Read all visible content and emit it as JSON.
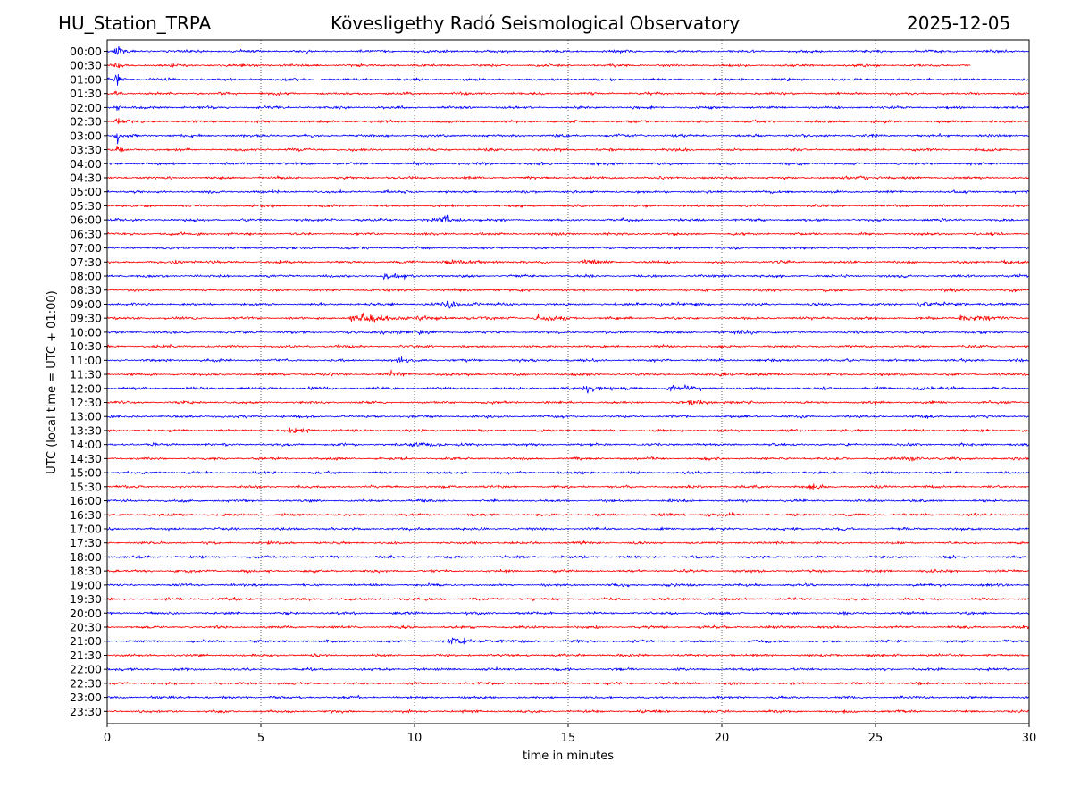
{
  "header": {
    "station": "HU_Station_TRPA",
    "observatory": "Kövesligethy Radó Seismological Observatory",
    "date": "2025-12-05"
  },
  "chart_data": {
    "type": "line",
    "title": "Kövesligethy Radó Seismological Observatory",
    "xlabel": "time in minutes",
    "ylabel": "UTC (local time = UTC + 01:00)",
    "xlim": [
      0,
      30
    ],
    "x_ticks": [
      0,
      5,
      10,
      15,
      20,
      25,
      30
    ],
    "grid": "vertical dotted lines at x ticks",
    "trace_colors": [
      "#0000ff",
      "#ff0000"
    ],
    "rows": [
      "00:00",
      "00:30",
      "01:00",
      "01:30",
      "02:00",
      "02:30",
      "03:00",
      "03:30",
      "04:00",
      "04:30",
      "05:00",
      "05:30",
      "06:00",
      "06:30",
      "07:00",
      "07:30",
      "08:00",
      "08:30",
      "09:00",
      "09:30",
      "10:00",
      "10:30",
      "11:00",
      "11:30",
      "12:00",
      "12:30",
      "13:00",
      "13:30",
      "14:00",
      "14:30",
      "15:00",
      "15:30",
      "16:00",
      "16:30",
      "17:00",
      "17:30",
      "18:00",
      "18:30",
      "19:00",
      "19:30",
      "20:00",
      "20:30",
      "21:00",
      "21:30",
      "22:00",
      "22:30",
      "23:00",
      "23:30"
    ],
    "events": [
      {
        "row": "00:00",
        "minute": 0.35,
        "amplitude": 6.0,
        "duration": 0.25
      },
      {
        "row": "00:30",
        "minute": 0.35,
        "amplitude": 5.0,
        "duration": 0.25
      },
      {
        "row": "01:00",
        "minute": 0.35,
        "amplitude": 6.0,
        "duration": 0.3
      },
      {
        "row": "01:30",
        "minute": 0.35,
        "amplitude": 4.0,
        "duration": 0.25
      },
      {
        "row": "02:00",
        "minute": 0.35,
        "amplitude": 4.0,
        "duration": 0.25
      },
      {
        "row": "02:30",
        "minute": 0.35,
        "amplitude": 3.0,
        "duration": 0.25
      },
      {
        "row": "03:00",
        "minute": 0.35,
        "amplitude": 5.0,
        "duration": 0.25
      },
      {
        "row": "03:30",
        "minute": 0.35,
        "amplitude": 3.0,
        "duration": 0.25
      },
      {
        "row": "04:30",
        "minute": 24.5,
        "amplitude": 1.6,
        "duration": 1.2
      },
      {
        "row": "06:00",
        "minute": 10.9,
        "amplitude": 2.5,
        "duration": 1.5
      },
      {
        "row": "06:30",
        "minute": 3.0,
        "amplitude": 1.4,
        "duration": 1.0
      },
      {
        "row": "07:30",
        "minute": 2.2,
        "amplitude": 1.4,
        "duration": 1.5
      },
      {
        "row": "07:30",
        "minute": 11.0,
        "amplitude": 1.6,
        "duration": 2.0
      },
      {
        "row": "07:30",
        "minute": 15.6,
        "amplitude": 1.8,
        "duration": 1.0
      },
      {
        "row": "07:30",
        "minute": 29.2,
        "amplitude": 2.0,
        "duration": 1.2
      },
      {
        "row": "08:00",
        "minute": 9.0,
        "amplitude": 2.0,
        "duration": 2.0
      },
      {
        "row": "08:30",
        "minute": 27.2,
        "amplitude": 2.0,
        "duration": 1.2
      },
      {
        "row": "09:00",
        "minute": 11.0,
        "amplitude": 3.0,
        "duration": 2.0
      },
      {
        "row": "09:00",
        "minute": 18.0,
        "amplitude": 1.6,
        "duration": 2.0
      },
      {
        "row": "09:00",
        "minute": 26.5,
        "amplitude": 1.8,
        "duration": 3.0
      },
      {
        "row": "09:30",
        "minute": 8.0,
        "amplitude": 2.6,
        "duration": 6.0
      },
      {
        "row": "09:30",
        "minute": 14.0,
        "amplitude": 2.0,
        "duration": 2.0
      },
      {
        "row": "09:30",
        "minute": 27.8,
        "amplitude": 2.0,
        "duration": 2.0
      },
      {
        "row": "10:00",
        "minute": 9.0,
        "amplitude": 1.8,
        "duration": 3.0
      },
      {
        "row": "10:00",
        "minute": 20.5,
        "amplitude": 1.5,
        "duration": 1.5
      },
      {
        "row": "11:00",
        "minute": 9.5,
        "amplitude": 1.5,
        "duration": 1.0
      },
      {
        "row": "11:30",
        "minute": 9.2,
        "amplitude": 1.8,
        "duration": 1.0
      },
      {
        "row": "11:30",
        "minute": 20.0,
        "amplitude": 1.5,
        "duration": 1.5
      },
      {
        "row": "12:00",
        "minute": 15.6,
        "amplitude": 4.0,
        "duration": 1.5
      },
      {
        "row": "12:00",
        "minute": 18.3,
        "amplitude": 2.2,
        "duration": 2.0
      },
      {
        "row": "12:00",
        "minute": 26.2,
        "amplitude": 1.6,
        "duration": 2.0
      },
      {
        "row": "12:30",
        "minute": 19.0,
        "amplitude": 1.6,
        "duration": 2.0
      },
      {
        "row": "13:30",
        "minute": 6.0,
        "amplitude": 1.8,
        "duration": 1.5
      },
      {
        "row": "14:00",
        "minute": 10.0,
        "amplitude": 2.0,
        "duration": 2.0
      },
      {
        "row": "14:30",
        "minute": 26.0,
        "amplitude": 1.5,
        "duration": 1.5
      },
      {
        "row": "15:30",
        "minute": 22.8,
        "amplitude": 1.5,
        "duration": 1.0
      },
      {
        "row": "16:30",
        "minute": 19.5,
        "amplitude": 1.3,
        "duration": 1.5
      },
      {
        "row": "21:00",
        "minute": 11.2,
        "amplitude": 3.0,
        "duration": 1.8
      }
    ],
    "gaps": [
      {
        "row": "00:30",
        "from": 28.1,
        "to": 30
      },
      {
        "row": "01:00",
        "from": 6.75,
        "to": 6.95
      }
    ]
  }
}
